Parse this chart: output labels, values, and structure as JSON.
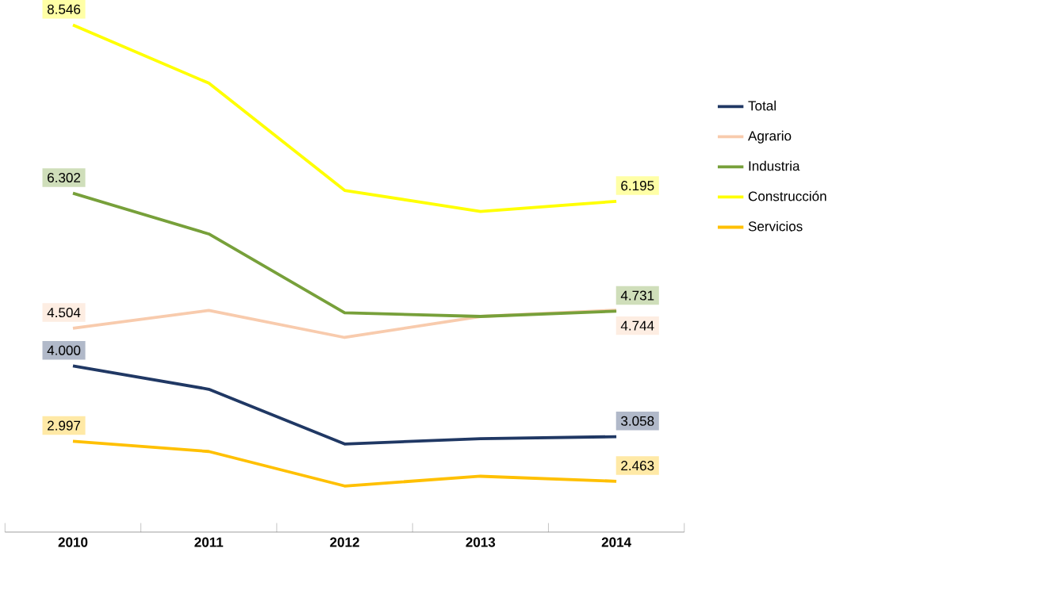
{
  "chart_data": {
    "type": "line",
    "categories": [
      "2010",
      "2011",
      "2012",
      "2013",
      "2014"
    ],
    "tick_labels": "x",
    "legend": "right",
    "marker": "none",
    "line_style": "solid",
    "series": [
      {
        "name": "Total",
        "color": "#203864",
        "values": [
          4.0,
          3.69,
          2.96,
          3.03,
          3.058
        ],
        "value_labels": [
          "4.000",
          null,
          null,
          null,
          "3.058"
        ]
      },
      {
        "name": "Agrario",
        "color": "#f8cbad",
        "values": [
          4.504,
          4.74,
          4.38,
          4.66,
          4.744
        ],
        "value_labels": [
          "4.504",
          null,
          null,
          null,
          "4.744"
        ]
      },
      {
        "name": "Industria",
        "color": "#77a03a",
        "values": [
          6.302,
          5.76,
          4.71,
          4.66,
          4.731
        ],
        "value_labels": [
          "6.302",
          null,
          null,
          null,
          "4.731"
        ]
      },
      {
        "name": "Construcción",
        "color": "#ffff00",
        "values": [
          8.546,
          7.77,
          6.34,
          6.06,
          6.195
        ],
        "value_labels": [
          "8.546",
          null,
          null,
          null,
          "6.195"
        ]
      },
      {
        "name": "Servicios",
        "color": "#ffc000",
        "values": [
          2.997,
          2.86,
          2.4,
          2.53,
          2.463
        ],
        "value_labels": [
          "2.997",
          null,
          null,
          null,
          "2.463"
        ]
      }
    ]
  }
}
